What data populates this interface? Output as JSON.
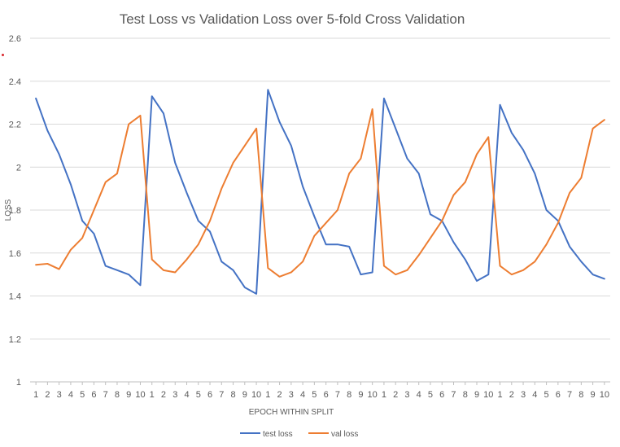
{
  "chart_data": {
    "type": "line",
    "title": "Test Loss vs Validation Loss over 5-fold Cross Validation",
    "xlabel": "EPOCH WITHIN SPLIT",
    "ylabel": "LOSS",
    "ylim": [
      1,
      2.6
    ],
    "yticks": [
      "1",
      "1.2",
      "1.4",
      "1.6",
      "1.8",
      "2",
      "2.2",
      "2.4",
      "2.6"
    ],
    "grid": true,
    "legend": "bottom",
    "categories": [
      "1",
      "2",
      "3",
      "4",
      "5",
      "6",
      "7",
      "8",
      "9",
      "10",
      "1",
      "2",
      "3",
      "4",
      "5",
      "6",
      "7",
      "8",
      "9",
      "10",
      "1",
      "2",
      "3",
      "4",
      "5",
      "6",
      "7",
      "8",
      "9",
      "10",
      "1",
      "2",
      "3",
      "4",
      "5",
      "6",
      "7",
      "8",
      "9",
      "10",
      "1",
      "2",
      "3",
      "4",
      "5",
      "6",
      "7",
      "8",
      "9",
      "10"
    ],
    "series": [
      {
        "name": "test loss",
        "color": "#4472C4",
        "values": [
          2.32,
          2.17,
          2.06,
          1.92,
          1.75,
          1.69,
          1.54,
          1.52,
          1.5,
          1.45,
          2.33,
          2.25,
          2.02,
          1.88,
          1.75,
          1.7,
          1.56,
          1.52,
          1.44,
          1.41,
          2.36,
          2.21,
          2.1,
          1.91,
          1.77,
          1.64,
          1.64,
          1.63,
          1.5,
          1.51,
          2.32,
          2.18,
          2.04,
          1.97,
          1.78,
          1.75,
          1.65,
          1.57,
          1.47,
          1.5,
          2.29,
          2.16,
          2.08,
          1.97,
          1.8,
          1.75,
          1.63,
          1.56,
          1.5,
          1.48
        ]
      },
      {
        "name": "val loss",
        "color": "#ED7D31",
        "values": [
          1.545,
          1.55,
          1.525,
          1.615,
          1.67,
          1.8,
          1.93,
          1.97,
          2.2,
          2.24,
          1.57,
          1.52,
          1.51,
          1.57,
          1.64,
          1.75,
          1.9,
          2.02,
          2.1,
          2.18,
          1.53,
          1.49,
          1.51,
          1.56,
          1.68,
          1.74,
          1.8,
          1.97,
          2.04,
          2.27,
          1.54,
          1.5,
          1.52,
          1.59,
          1.67,
          1.75,
          1.87,
          1.93,
          2.06,
          2.14,
          1.54,
          1.5,
          1.52,
          1.56,
          1.64,
          1.74,
          1.88,
          1.95,
          2.18,
          2.22
        ]
      }
    ]
  }
}
